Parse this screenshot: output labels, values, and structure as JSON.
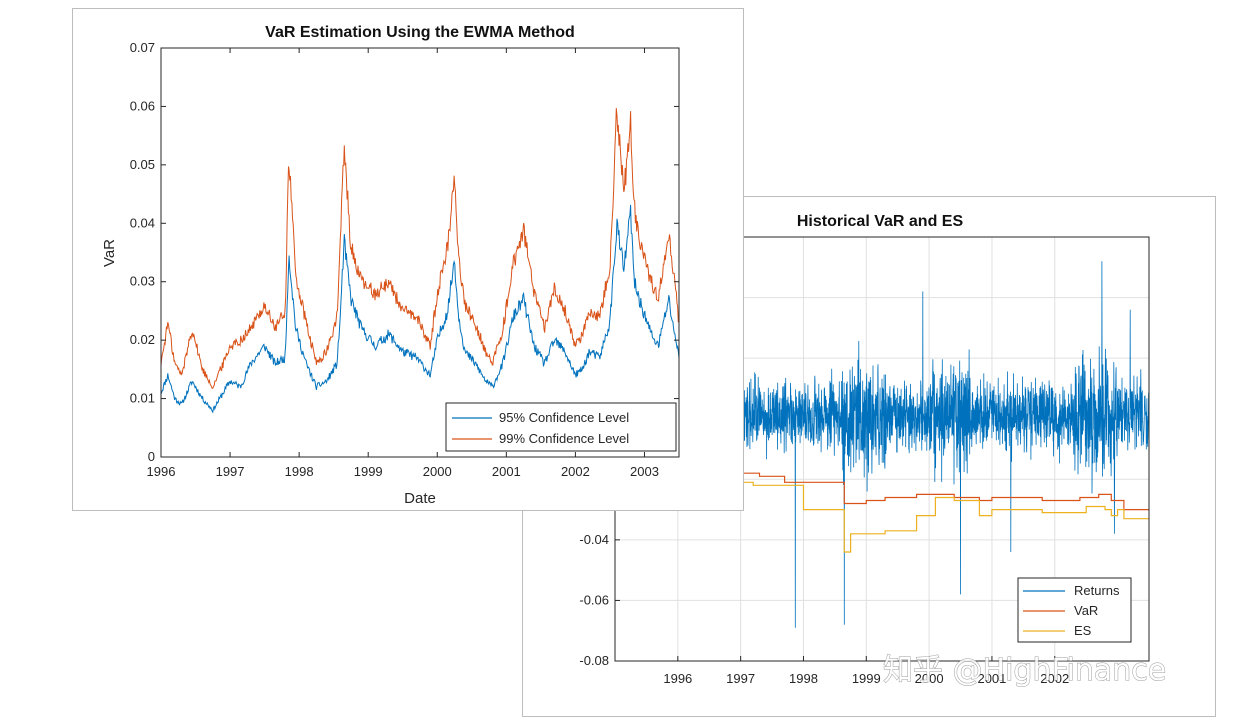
{
  "watermark": "知乎 @HighFinance",
  "chart_data": [
    {
      "id": "ewma",
      "type": "line",
      "title": "VaR Estimation Using the EWMA Method",
      "xlabel": "Date",
      "ylabel": "VaR",
      "xlim": [
        1996,
        2003.5
      ],
      "ylim": [
        0,
        0.07
      ],
      "xticks": [
        1996,
        1997,
        1998,
        1999,
        2000,
        2001,
        2002,
        2003
      ],
      "xtick_labels": [
        "1996",
        "1997",
        "1998",
        "1999",
        "2000",
        "2001",
        "2002",
        "2003"
      ],
      "yticks": [
        0,
        0.01,
        0.02,
        0.03,
        0.04,
        0.05,
        0.06,
        0.07
      ],
      "ytick_labels": [
        "0",
        "0.01",
        "0.02",
        "0.03",
        "0.04",
        "0.05",
        "0.06",
        "0.07"
      ],
      "grid": false,
      "legend_position": "bottom-right",
      "series": [
        {
          "name": "95% Confidence Level",
          "color": "#0072bd",
          "x": [
            1996.0,
            1996.1,
            1996.2,
            1996.3,
            1996.45,
            1996.6,
            1996.75,
            1996.9,
            1997.0,
            1997.15,
            1997.3,
            1997.5,
            1997.65,
            1997.8,
            1997.85,
            1997.95,
            1998.1,
            1998.25,
            1998.4,
            1998.55,
            1998.6,
            1998.65,
            1998.75,
            1998.9,
            1999.1,
            1999.3,
            1999.5,
            1999.7,
            1999.9,
            2000.0,
            2000.15,
            2000.25,
            2000.3,
            2000.4,
            2000.55,
            2000.7,
            2000.8,
            2000.95,
            2001.1,
            2001.25,
            2001.4,
            2001.55,
            2001.7,
            2001.85,
            2002.0,
            2002.1,
            2002.2,
            2002.35,
            2002.5,
            2002.6,
            2002.7,
            2002.8,
            2002.85,
            2002.95,
            2003.1,
            2003.2,
            2003.35,
            2003.5
          ],
          "y": [
            0.011,
            0.014,
            0.01,
            0.009,
            0.013,
            0.01,
            0.008,
            0.011,
            0.013,
            0.012,
            0.016,
            0.019,
            0.016,
            0.017,
            0.035,
            0.022,
            0.016,
            0.012,
            0.013,
            0.016,
            0.025,
            0.037,
            0.027,
            0.022,
            0.019,
            0.021,
            0.018,
            0.017,
            0.014,
            0.02,
            0.025,
            0.034,
            0.025,
            0.018,
            0.016,
            0.013,
            0.012,
            0.016,
            0.024,
            0.027,
            0.019,
            0.016,
            0.02,
            0.018,
            0.014,
            0.015,
            0.018,
            0.017,
            0.023,
            0.04,
            0.032,
            0.042,
            0.03,
            0.026,
            0.021,
            0.019,
            0.027,
            0.017
          ]
        },
        {
          "name": "99% Confidence Level",
          "color": "#d95319",
          "x": [
            1996.0,
            1996.1,
            1996.2,
            1996.3,
            1996.45,
            1996.6,
            1996.75,
            1996.9,
            1997.0,
            1997.15,
            1997.3,
            1997.5,
            1997.65,
            1997.8,
            1997.85,
            1997.95,
            1998.1,
            1998.25,
            1998.4,
            1998.55,
            1998.6,
            1998.65,
            1998.75,
            1998.9,
            1999.1,
            1999.3,
            1999.5,
            1999.7,
            1999.9,
            2000.0,
            2000.15,
            2000.25,
            2000.3,
            2000.4,
            2000.55,
            2000.7,
            2000.8,
            2000.95,
            2001.1,
            2001.25,
            2001.4,
            2001.55,
            2001.7,
            2001.85,
            2002.0,
            2002.1,
            2002.2,
            2002.35,
            2002.5,
            2002.6,
            2002.7,
            2002.8,
            2002.85,
            2002.95,
            2003.1,
            2003.2,
            2003.35,
            2003.5
          ],
          "y": [
            0.016,
            0.023,
            0.016,
            0.014,
            0.022,
            0.015,
            0.012,
            0.016,
            0.019,
            0.02,
            0.022,
            0.026,
            0.022,
            0.025,
            0.052,
            0.031,
            0.023,
            0.016,
            0.018,
            0.024,
            0.038,
            0.053,
            0.036,
            0.03,
            0.028,
            0.03,
            0.025,
            0.024,
            0.019,
            0.028,
            0.036,
            0.049,
            0.035,
            0.026,
            0.023,
            0.018,
            0.016,
            0.022,
            0.033,
            0.039,
            0.028,
            0.022,
            0.029,
            0.025,
            0.019,
            0.021,
            0.025,
            0.024,
            0.033,
            0.06,
            0.045,
            0.057,
            0.043,
            0.036,
            0.03,
            0.027,
            0.039,
            0.023
          ]
        }
      ]
    },
    {
      "id": "hist",
      "type": "line",
      "title": "Historical VaR and ES",
      "xlim": [
        1995,
        2003.5
      ],
      "ylim": [
        -0.08,
        0.06
      ],
      "xticks": [
        1996,
        1997,
        1998,
        1999,
        2000,
        2001,
        2002
      ],
      "xtick_labels": [
        "1996",
        "1997",
        "1998",
        "1999",
        "2000",
        "2001",
        "2002"
      ],
      "yticks": [
        -0.08,
        -0.06,
        -0.04
      ],
      "ytick_labels": [
        "-0.08",
        "-0.06",
        "-0.04"
      ],
      "grid": true,
      "legend_position": "bottom-right",
      "series": [
        {
          "name": "Returns",
          "color": "#0072bd",
          "n_points": 1950,
          "spikes": [
            [
              1997.87,
              -0.069
            ],
            [
              1998.65,
              -0.068
            ],
            [
              1999.9,
              0.042
            ],
            [
              2000.5,
              -0.058
            ],
            [
              2001.3,
              -0.044
            ],
            [
              2002.75,
              0.052
            ],
            [
              2002.95,
              -0.038
            ],
            [
              2003.2,
              0.036
            ]
          ]
        },
        {
          "name": "VaR",
          "color": "#d95319",
          "x": [
            1997.0,
            1997.1,
            1997.3,
            1997.6,
            1997.7,
            1998.6,
            1998.65,
            1998.75,
            1999.0,
            1999.3,
            1999.8,
            2000.1,
            2000.4,
            2000.8,
            2001.0,
            2001.5,
            2001.8,
            2002.2,
            2002.4,
            2002.7,
            2002.9,
            2003.0,
            2003.1,
            2003.5
          ],
          "y": [
            -0.018,
            -0.018,
            -0.019,
            -0.019,
            -0.021,
            -0.021,
            -0.028,
            -0.028,
            -0.027,
            -0.026,
            -0.025,
            -0.025,
            -0.026,
            -0.027,
            -0.026,
            -0.026,
            -0.027,
            -0.027,
            -0.026,
            -0.025,
            -0.027,
            -0.027,
            -0.03,
            -0.03
          ]
        },
        {
          "name": "ES",
          "color": "#edb120",
          "x": [
            1997.0,
            1997.2,
            1997.5,
            1997.8,
            1998.0,
            1998.5,
            1998.65,
            1998.75,
            1999.0,
            1999.3,
            1999.8,
            2000.1,
            2000.4,
            2000.8,
            2001.0,
            2001.5,
            2001.8,
            2002.2,
            2002.5,
            2002.8,
            2002.9,
            2003.0,
            2003.1,
            2003.5
          ],
          "y": [
            -0.021,
            -0.022,
            -0.022,
            -0.022,
            -0.03,
            -0.03,
            -0.044,
            -0.038,
            -0.038,
            -0.037,
            -0.032,
            -0.026,
            -0.027,
            -0.032,
            -0.03,
            -0.03,
            -0.031,
            -0.031,
            -0.029,
            -0.03,
            -0.032,
            -0.03,
            -0.033,
            -0.033
          ]
        }
      ]
    }
  ]
}
